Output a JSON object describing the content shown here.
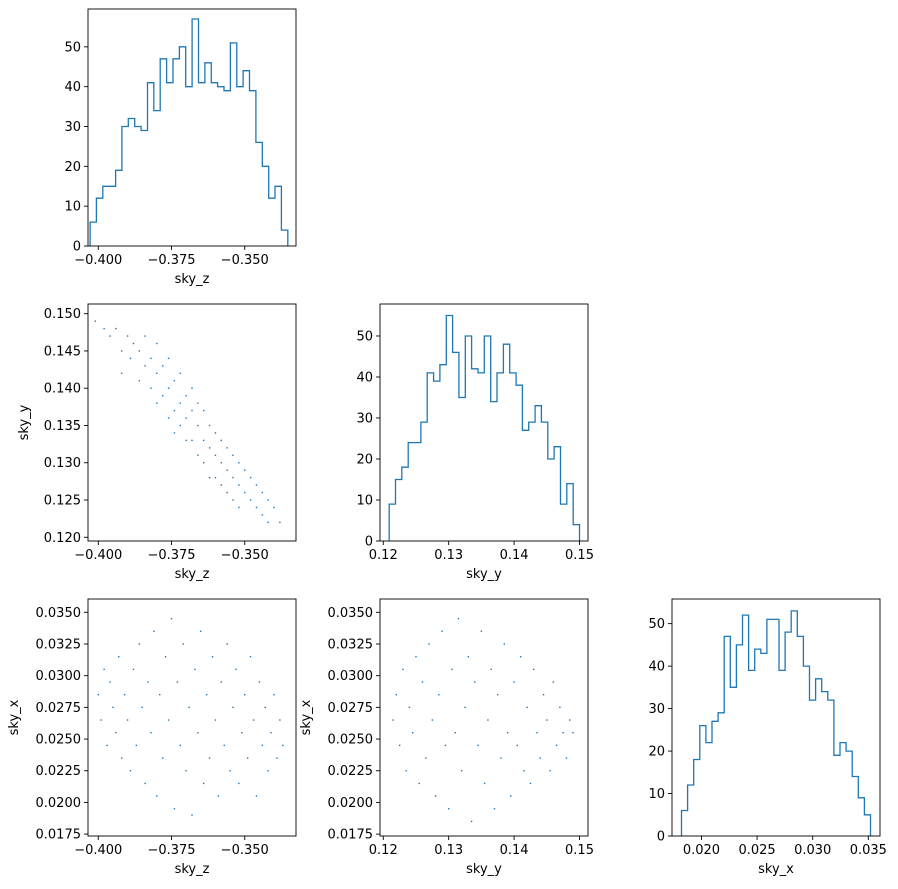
{
  "chart_data": [
    {
      "type": "histogram",
      "panel": "sky_z",
      "xlabel": "sky_z",
      "ylabel": "",
      "xlim": [
        -0.4035,
        -0.3325
      ],
      "ylim": [
        0,
        59.5
      ],
      "xticks": [
        {
          "v": -0.4,
          "label": "−0.400"
        },
        {
          "v": -0.375,
          "label": "−0.375"
        },
        {
          "v": -0.35,
          "label": "−0.350"
        }
      ],
      "yticks": [
        {
          "v": 0,
          "label": "0"
        },
        {
          "v": 10,
          "label": "10"
        },
        {
          "v": 20,
          "label": "20"
        },
        {
          "v": 30,
          "label": "30"
        },
        {
          "v": 40,
          "label": "40"
        },
        {
          "v": 50,
          "label": "50"
        }
      ],
      "bin_start": -0.4028,
      "bin_end": -0.3353,
      "counts": [
        6,
        12,
        15,
        15,
        19,
        30,
        32,
        30,
        29,
        41,
        34,
        47,
        41,
        47,
        50,
        40,
        57,
        41,
        46,
        41,
        40,
        39,
        51,
        40,
        44,
        39,
        26,
        20,
        12,
        15,
        4
      ]
    },
    {
      "type": "scatter",
      "panel": "sky_z vs sky_y",
      "xlabel": "sky_z",
      "ylabel": "sky_y",
      "xlim": [
        -0.4035,
        -0.3325
      ],
      "ylim": [
        0.1195,
        0.1513
      ],
      "xticks": [
        {
          "v": -0.4,
          "label": "−0.400"
        },
        {
          "v": -0.375,
          "label": "−0.375"
        },
        {
          "v": -0.35,
          "label": "−0.350"
        }
      ],
      "yticks": [
        {
          "v": 0.12,
          "label": "0.120"
        },
        {
          "v": 0.125,
          "label": "0.125"
        },
        {
          "v": 0.13,
          "label": "0.130"
        },
        {
          "v": 0.135,
          "label": "0.135"
        },
        {
          "v": 0.14,
          "label": "0.140"
        },
        {
          "v": 0.145,
          "label": "0.145"
        },
        {
          "v": 0.15,
          "label": "0.150"
        }
      ],
      "points": [
        [
          -0.401,
          0.149
        ],
        [
          -0.398,
          0.148
        ],
        [
          -0.396,
          0.147
        ],
        [
          -0.394,
          0.148
        ],
        [
          -0.392,
          0.145
        ],
        [
          -0.392,
          0.142
        ],
        [
          -0.39,
          0.147
        ],
        [
          -0.388,
          0.146
        ],
        [
          -0.389,
          0.144
        ],
        [
          -0.386,
          0.145
        ],
        [
          -0.386,
          0.141
        ],
        [
          -0.384,
          0.147
        ],
        [
          -0.384,
          0.143
        ],
        [
          -0.382,
          0.144
        ],
        [
          -0.382,
          0.14
        ],
        [
          -0.38,
          0.146
        ],
        [
          -0.38,
          0.142
        ],
        [
          -0.38,
          0.138
        ],
        [
          -0.378,
          0.143
        ],
        [
          -0.378,
          0.139
        ],
        [
          -0.376,
          0.144
        ],
        [
          -0.376,
          0.14
        ],
        [
          -0.376,
          0.136
        ],
        [
          -0.374,
          0.141
        ],
        [
          -0.374,
          0.137
        ],
        [
          -0.374,
          0.134
        ],
        [
          -0.372,
          0.142
        ],
        [
          -0.372,
          0.138
        ],
        [
          -0.372,
          0.135
        ],
        [
          -0.37,
          0.139
        ],
        [
          -0.37,
          0.136
        ],
        [
          -0.37,
          0.133
        ],
        [
          -0.368,
          0.14
        ],
        [
          -0.368,
          0.137
        ],
        [
          -0.368,
          0.133
        ],
        [
          -0.366,
          0.138
        ],
        [
          -0.366,
          0.135
        ],
        [
          -0.366,
          0.131
        ],
        [
          -0.364,
          0.137
        ],
        [
          -0.364,
          0.133
        ],
        [
          -0.364,
          0.13
        ],
        [
          -0.362,
          0.135
        ],
        [
          -0.362,
          0.132
        ],
        [
          -0.362,
          0.128
        ],
        [
          -0.36,
          0.134
        ],
        [
          -0.36,
          0.131
        ],
        [
          -0.36,
          0.128
        ],
        [
          -0.358,
          0.133
        ],
        [
          -0.358,
          0.13
        ],
        [
          -0.358,
          0.127
        ],
        [
          -0.356,
          0.132
        ],
        [
          -0.356,
          0.129
        ],
        [
          -0.356,
          0.126
        ],
        [
          -0.354,
          0.131
        ],
        [
          -0.354,
          0.128
        ],
        [
          -0.354,
          0.125
        ],
        [
          -0.352,
          0.13
        ],
        [
          -0.352,
          0.127
        ],
        [
          -0.352,
          0.124
        ],
        [
          -0.35,
          0.129
        ],
        [
          -0.35,
          0.126
        ],
        [
          -0.348,
          0.128
        ],
        [
          -0.348,
          0.125
        ],
        [
          -0.346,
          0.127
        ],
        [
          -0.346,
          0.124
        ],
        [
          -0.344,
          0.126
        ],
        [
          -0.344,
          0.123
        ],
        [
          -0.342,
          0.125
        ],
        [
          -0.342,
          0.122
        ],
        [
          -0.34,
          0.124
        ],
        [
          -0.338,
          0.122
        ]
      ]
    },
    {
      "type": "histogram",
      "panel": "sky_y",
      "xlabel": "sky_y",
      "ylabel": "",
      "xlim": [
        0.1195,
        0.1513
      ],
      "ylim": [
        0,
        57.8
      ],
      "xticks": [
        {
          "v": 0.12,
          "label": "0.12"
        },
        {
          "v": 0.13,
          "label": "0.13"
        },
        {
          "v": 0.14,
          "label": "0.14"
        },
        {
          "v": 0.15,
          "label": "0.15"
        }
      ],
      "yticks": [
        {
          "v": 0,
          "label": "0"
        },
        {
          "v": 10,
          "label": "10"
        },
        {
          "v": 20,
          "label": "20"
        },
        {
          "v": 30,
          "label": "30"
        },
        {
          "v": 40,
          "label": "40"
        },
        {
          "v": 50,
          "label": "50"
        }
      ],
      "bin_start": 0.1209,
      "bin_end": 0.15,
      "counts": [
        9,
        15,
        18,
        24,
        24,
        29,
        41,
        39,
        43,
        55,
        46,
        35,
        50,
        42,
        41,
        50,
        34,
        41,
        48,
        41,
        38,
        27,
        29,
        33,
        29,
        20,
        23,
        9,
        14,
        4
      ]
    },
    {
      "type": "scatter",
      "panel": "sky_z vs sky_x",
      "xlabel": "sky_z",
      "ylabel": "sky_x",
      "xlim": [
        -0.4035,
        -0.3325
      ],
      "ylim": [
        0.01735,
        0.03605
      ],
      "xticks": [
        {
          "v": -0.4,
          "label": "−0.400"
        },
        {
          "v": -0.375,
          "label": "−0.375"
        },
        {
          "v": -0.35,
          "label": "−0.350"
        }
      ],
      "yticks": [
        {
          "v": 0.0175,
          "label": "0.0175"
        },
        {
          "v": 0.02,
          "label": "0.0200"
        },
        {
          "v": 0.0225,
          "label": "0.0225"
        },
        {
          "v": 0.025,
          "label": "0.0250"
        },
        {
          "v": 0.0275,
          "label": "0.0275"
        },
        {
          "v": 0.03,
          "label": "0.0300"
        },
        {
          "v": 0.0325,
          "label": "0.0325"
        },
        {
          "v": 0.035,
          "label": "0.0350"
        }
      ],
      "points": [
        [
          -0.4,
          0.0285
        ],
        [
          -0.399,
          0.0265
        ],
        [
          -0.398,
          0.0305
        ],
        [
          -0.397,
          0.0245
        ],
        [
          -0.396,
          0.0295
        ],
        [
          -0.395,
          0.0275
        ],
        [
          -0.394,
          0.0255
        ],
        [
          -0.393,
          0.0315
        ],
        [
          -0.392,
          0.0235
        ],
        [
          -0.391,
          0.0285
        ],
        [
          -0.39,
          0.0265
        ],
        [
          -0.389,
          0.0225
        ],
        [
          -0.388,
          0.0305
        ],
        [
          -0.387,
          0.0245
        ],
        [
          -0.386,
          0.0325
        ],
        [
          -0.385,
          0.0275
        ],
        [
          -0.384,
          0.0215
        ],
        [
          -0.383,
          0.0295
        ],
        [
          -0.382,
          0.0255
        ],
        [
          -0.381,
          0.0335
        ],
        [
          -0.38,
          0.0205
        ],
        [
          -0.379,
          0.0285
        ],
        [
          -0.378,
          0.0235
        ],
        [
          -0.377,
          0.0315
        ],
        [
          -0.376,
          0.0265
        ],
        [
          -0.375,
          0.0345
        ],
        [
          -0.374,
          0.0195
        ],
        [
          -0.373,
          0.0295
        ],
        [
          -0.372,
          0.0245
        ],
        [
          -0.371,
          0.0325
        ],
        [
          -0.37,
          0.0225
        ],
        [
          -0.369,
          0.0275
        ],
        [
          -0.368,
          0.019
        ],
        [
          -0.367,
          0.0305
        ],
        [
          -0.366,
          0.0255
        ],
        [
          -0.365,
          0.0335
        ],
        [
          -0.364,
          0.0215
        ],
        [
          -0.363,
          0.0285
        ],
        [
          -0.362,
          0.0235
        ],
        [
          -0.361,
          0.0315
        ],
        [
          -0.36,
          0.0265
        ],
        [
          -0.359,
          0.0205
        ],
        [
          -0.358,
          0.0295
        ],
        [
          -0.357,
          0.0245
        ],
        [
          -0.356,
          0.0325
        ],
        [
          -0.355,
          0.0225
        ],
        [
          -0.354,
          0.0275
        ],
        [
          -0.353,
          0.0305
        ],
        [
          -0.352,
          0.0215
        ],
        [
          -0.351,
          0.0255
        ],
        [
          -0.35,
          0.0285
        ],
        [
          -0.349,
          0.0235
        ],
        [
          -0.348,
          0.0315
        ],
        [
          -0.347,
          0.0265
        ],
        [
          -0.346,
          0.0205
        ],
        [
          -0.345,
          0.0295
        ],
        [
          -0.344,
          0.0245
        ],
        [
          -0.343,
          0.0275
        ],
        [
          -0.342,
          0.0225
        ],
        [
          -0.341,
          0.0255
        ],
        [
          -0.34,
          0.0285
        ],
        [
          -0.339,
          0.0235
        ],
        [
          -0.338,
          0.0265
        ],
        [
          -0.337,
          0.0245
        ]
      ]
    },
    {
      "type": "scatter",
      "panel": "sky_y vs sky_x",
      "xlabel": "sky_y",
      "ylabel": "sky_x",
      "xlim": [
        0.1195,
        0.1513
      ],
      "ylim": [
        0.01735,
        0.03605
      ],
      "xticks": [
        {
          "v": 0.12,
          "label": "0.12"
        },
        {
          "v": 0.13,
          "label": "0.13"
        },
        {
          "v": 0.14,
          "label": "0.14"
        },
        {
          "v": 0.15,
          "label": "0.15"
        }
      ],
      "yticks": [
        {
          "v": 0.0175,
          "label": "0.0175"
        },
        {
          "v": 0.02,
          "label": "0.0200"
        },
        {
          "v": 0.0225,
          "label": "0.0225"
        },
        {
          "v": 0.025,
          "label": "0.0250"
        },
        {
          "v": 0.0275,
          "label": "0.0275"
        },
        {
          "v": 0.03,
          "label": "0.0300"
        },
        {
          "v": 0.0325,
          "label": "0.0325"
        },
        {
          "v": 0.035,
          "label": "0.0350"
        }
      ],
      "points": [
        [
          0.1215,
          0.0265
        ],
        [
          0.122,
          0.0285
        ],
        [
          0.1225,
          0.0245
        ],
        [
          0.123,
          0.0305
        ],
        [
          0.1235,
          0.0225
        ],
        [
          0.124,
          0.0275
        ],
        [
          0.1245,
          0.0255
        ],
        [
          0.125,
          0.0315
        ],
        [
          0.1255,
          0.0215
        ],
        [
          0.126,
          0.0295
        ],
        [
          0.1265,
          0.0235
        ],
        [
          0.127,
          0.0325
        ],
        [
          0.1275,
          0.0265
        ],
        [
          0.128,
          0.0205
        ],
        [
          0.1285,
          0.0285
        ],
        [
          0.129,
          0.0335
        ],
        [
          0.1295,
          0.0245
        ],
        [
          0.13,
          0.0195
        ],
        [
          0.1305,
          0.0305
        ],
        [
          0.131,
          0.0255
        ],
        [
          0.1315,
          0.0345
        ],
        [
          0.132,
          0.0225
        ],
        [
          0.1325,
          0.0275
        ],
        [
          0.133,
          0.0315
        ],
        [
          0.1335,
          0.0185
        ],
        [
          0.134,
          0.0295
        ],
        [
          0.1345,
          0.0245
        ],
        [
          0.135,
          0.0335
        ],
        [
          0.1355,
          0.0215
        ],
        [
          0.136,
          0.0265
        ],
        [
          0.1365,
          0.0305
        ],
        [
          0.137,
          0.0195
        ],
        [
          0.1375,
          0.0285
        ],
        [
          0.138,
          0.0235
        ],
        [
          0.1385,
          0.0325
        ],
        [
          0.139,
          0.0255
        ],
        [
          0.1395,
          0.0205
        ],
        [
          0.14,
          0.0295
        ],
        [
          0.1405,
          0.0245
        ],
        [
          0.141,
          0.0315
        ],
        [
          0.1415,
          0.0225
        ],
        [
          0.142,
          0.0275
        ],
        [
          0.1425,
          0.0215
        ],
        [
          0.143,
          0.0305
        ],
        [
          0.1435,
          0.0255
        ],
        [
          0.144,
          0.0235
        ],
        [
          0.1445,
          0.0285
        ],
        [
          0.145,
          0.0265
        ],
        [
          0.1455,
          0.0225
        ],
        [
          0.146,
          0.0295
        ],
        [
          0.1465,
          0.0245
        ],
        [
          0.147,
          0.0275
        ],
        [
          0.1475,
          0.0255
        ],
        [
          0.148,
          0.0235
        ],
        [
          0.1485,
          0.0265
        ],
        [
          0.149,
          0.0255
        ]
      ]
    },
    {
      "type": "histogram",
      "panel": "sky_x",
      "xlabel": "sky_x",
      "ylabel": "",
      "xlim": [
        0.01735,
        0.03605
      ],
      "ylim": [
        0,
        55.8
      ],
      "xticks": [
        {
          "v": 0.02,
          "label": "0.020"
        },
        {
          "v": 0.025,
          "label": "0.025"
        },
        {
          "v": 0.03,
          "label": "0.030"
        },
        {
          "v": 0.035,
          "label": "0.035"
        }
      ],
      "yticks": [
        {
          "v": 0,
          "label": "0"
        },
        {
          "v": 10,
          "label": "10"
        },
        {
          "v": 20,
          "label": "20"
        },
        {
          "v": 30,
          "label": "30"
        },
        {
          "v": 40,
          "label": "40"
        },
        {
          "v": 50,
          "label": "50"
        }
      ],
      "bin_start": 0.0182,
      "bin_end": 0.0352,
      "counts": [
        6,
        12,
        18,
        26,
        22,
        27,
        29,
        47,
        35,
        45,
        52,
        39,
        44,
        43,
        51,
        51,
        39,
        48,
        53,
        47,
        40,
        32,
        37,
        34,
        32,
        19,
        22,
        20,
        14,
        9,
        5
      ]
    }
  ]
}
